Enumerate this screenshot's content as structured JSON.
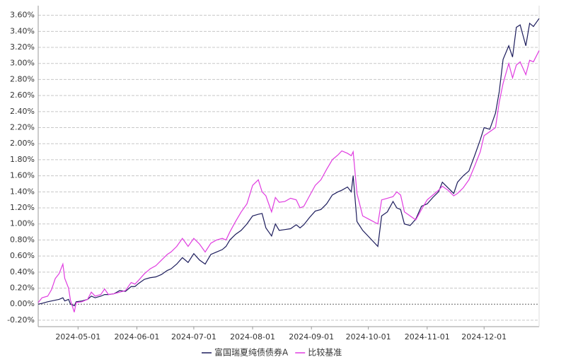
{
  "chart_data": {
    "type": "line",
    "x": [
      "2024-04-10",
      "2024-04-12",
      "2024-04-15",
      "2024-04-17",
      "2024-04-19",
      "2024-04-21",
      "2024-04-23",
      "2024-04-24",
      "2024-04-26",
      "2024-04-27",
      "2024-04-29",
      "2024-04-30",
      "2024-05-03",
      "2024-05-06",
      "2024-05-08",
      "2024-05-10",
      "2024-05-13",
      "2024-05-15",
      "2024-05-17",
      "2024-05-20",
      "2024-05-23",
      "2024-05-26",
      "2024-05-29",
      "2024-05-31",
      "2024-06-02",
      "2024-06-05",
      "2024-06-08",
      "2024-06-11",
      "2024-06-14",
      "2024-06-17",
      "2024-06-19",
      "2024-06-22",
      "2024-06-25",
      "2024-06-28",
      "2024-07-01",
      "2024-07-04",
      "2024-07-07",
      "2024-07-10",
      "2024-07-13",
      "2024-07-16",
      "2024-07-18",
      "2024-07-20",
      "2024-07-23",
      "2024-07-26",
      "2024-07-29",
      "2024-08-01",
      "2024-08-04",
      "2024-08-06",
      "2024-08-08",
      "2024-08-11",
      "2024-08-13",
      "2024-08-15",
      "2024-08-18",
      "2024-08-21",
      "2024-08-24",
      "2024-08-26",
      "2024-08-28",
      "2024-08-31",
      "2024-09-03",
      "2024-09-06",
      "2024-09-09",
      "2024-09-12",
      "2024-09-15",
      "2024-09-17",
      "2024-09-20",
      "2024-09-22",
      "2024-09-23",
      "2024-09-25",
      "2024-09-28",
      "2024-10-02",
      "2024-10-06",
      "2024-10-08",
      "2024-10-11",
      "2024-10-14",
      "2024-10-16",
      "2024-10-18",
      "2024-10-20",
      "2024-10-23",
      "2024-10-26",
      "2024-10-29",
      "2024-11-01",
      "2024-11-04",
      "2024-11-07",
      "2024-11-09",
      "2024-11-12",
      "2024-11-15",
      "2024-11-17",
      "2024-11-20",
      "2024-11-23",
      "2024-11-26",
      "2024-11-29",
      "2024-12-01",
      "2024-12-04",
      "2024-12-07",
      "2024-12-09",
      "2024-12-11",
      "2024-12-14",
      "2024-12-16",
      "2024-12-18",
      "2024-12-20",
      "2024-12-23",
      "2024-12-25",
      "2024-12-27",
      "2024-12-30"
    ],
    "series": [
      {
        "name": "富国瑞夏纯债债券A",
        "color": "#1c1c5c",
        "values": [
          0.0,
          0.01,
          0.03,
          0.04,
          0.05,
          0.06,
          0.08,
          0.04,
          0.06,
          0.0,
          -0.02,
          0.03,
          0.04,
          0.06,
          0.1,
          0.08,
          0.1,
          0.12,
          0.12,
          0.13,
          0.17,
          0.16,
          0.22,
          0.22,
          0.26,
          0.31,
          0.33,
          0.34,
          0.37,
          0.42,
          0.44,
          0.5,
          0.58,
          0.52,
          0.63,
          0.55,
          0.5,
          0.62,
          0.65,
          0.68,
          0.72,
          0.8,
          0.87,
          0.92,
          1.0,
          1.1,
          1.12,
          1.13,
          0.95,
          0.85,
          1.0,
          0.92,
          0.93,
          0.94,
          0.99,
          0.95,
          0.99,
          1.08,
          1.16,
          1.18,
          1.25,
          1.36,
          1.4,
          1.42,
          1.46,
          1.4,
          1.6,
          1.03,
          0.92,
          0.82,
          0.72,
          1.1,
          1.15,
          1.28,
          1.2,
          1.18,
          1.0,
          0.98,
          1.06,
          1.22,
          1.25,
          1.33,
          1.4,
          1.52,
          1.45,
          1.38,
          1.52,
          1.6,
          1.66,
          1.85,
          2.05,
          2.2,
          2.18,
          2.38,
          2.65,
          3.05,
          3.22,
          3.08,
          3.45,
          3.48,
          3.22,
          3.5,
          3.46,
          3.56
        ]
      },
      {
        "name": "比较基准",
        "color": "#e03ce0",
        "values": [
          0.02,
          0.08,
          0.1,
          0.18,
          0.32,
          0.38,
          0.5,
          0.32,
          0.2,
          0.05,
          -0.1,
          0.02,
          0.03,
          0.06,
          0.15,
          0.1,
          0.12,
          0.19,
          0.12,
          0.13,
          0.15,
          0.17,
          0.27,
          0.25,
          0.3,
          0.38,
          0.44,
          0.48,
          0.55,
          0.62,
          0.65,
          0.72,
          0.82,
          0.72,
          0.82,
          0.75,
          0.65,
          0.76,
          0.8,
          0.82,
          0.8,
          0.9,
          1.03,
          1.15,
          1.25,
          1.48,
          1.55,
          1.4,
          1.35,
          1.15,
          1.33,
          1.27,
          1.28,
          1.32,
          1.3,
          1.2,
          1.22,
          1.35,
          1.48,
          1.55,
          1.68,
          1.8,
          1.86,
          1.91,
          1.88,
          1.85,
          1.9,
          1.38,
          1.1,
          1.05,
          1.0,
          1.3,
          1.32,
          1.34,
          1.4,
          1.36,
          1.15,
          1.1,
          1.05,
          1.18,
          1.3,
          1.36,
          1.42,
          1.47,
          1.42,
          1.35,
          1.38,
          1.45,
          1.55,
          1.72,
          1.9,
          2.1,
          2.15,
          2.2,
          2.52,
          2.75,
          3.0,
          2.82,
          2.98,
          3.02,
          2.86,
          3.04,
          3.02,
          3.16
        ]
      }
    ],
    "xlim": [
      "2024-04-10",
      "2024-12-30"
    ],
    "xticks": [
      "2024-05-01",
      "2024-06-01",
      "2024-07-01",
      "2024-08-01",
      "2024-09-01",
      "2024-10-01",
      "2024-11-01",
      "2024-12-01"
    ],
    "ylim": [
      -0.28,
      3.72
    ],
    "yticks": [
      {
        "value": -0.2,
        "label": "-0.20%"
      },
      {
        "value": 0,
        "label": "0.00%"
      },
      {
        "value": 0.2,
        "label": "0.20%"
      },
      {
        "value": 0.4,
        "label": "0.40%"
      },
      {
        "value": 0.6,
        "label": "0.60%"
      },
      {
        "value": 0.8,
        "label": "0.80%"
      },
      {
        "value": 1.0,
        "label": "1.00%"
      },
      {
        "value": 1.2,
        "label": "1.20%"
      },
      {
        "value": 1.4,
        "label": "1.40%"
      },
      {
        "value": 1.6,
        "label": "1.60%"
      },
      {
        "value": 1.8,
        "label": "1.80%"
      },
      {
        "value": 2.0,
        "label": "2.00%"
      },
      {
        "value": 2.2,
        "label": "2.20%"
      },
      {
        "value": 2.4,
        "label": "2.40%"
      },
      {
        "value": 2.6,
        "label": "2.60%"
      },
      {
        "value": 2.8,
        "label": "2.80%"
      },
      {
        "value": 3.0,
        "label": "3.00%"
      },
      {
        "value": 3.2,
        "label": "3.20%"
      },
      {
        "value": 3.4,
        "label": "3.40%"
      },
      {
        "value": 3.6,
        "label": "3.60%"
      }
    ],
    "grid": true
  }
}
